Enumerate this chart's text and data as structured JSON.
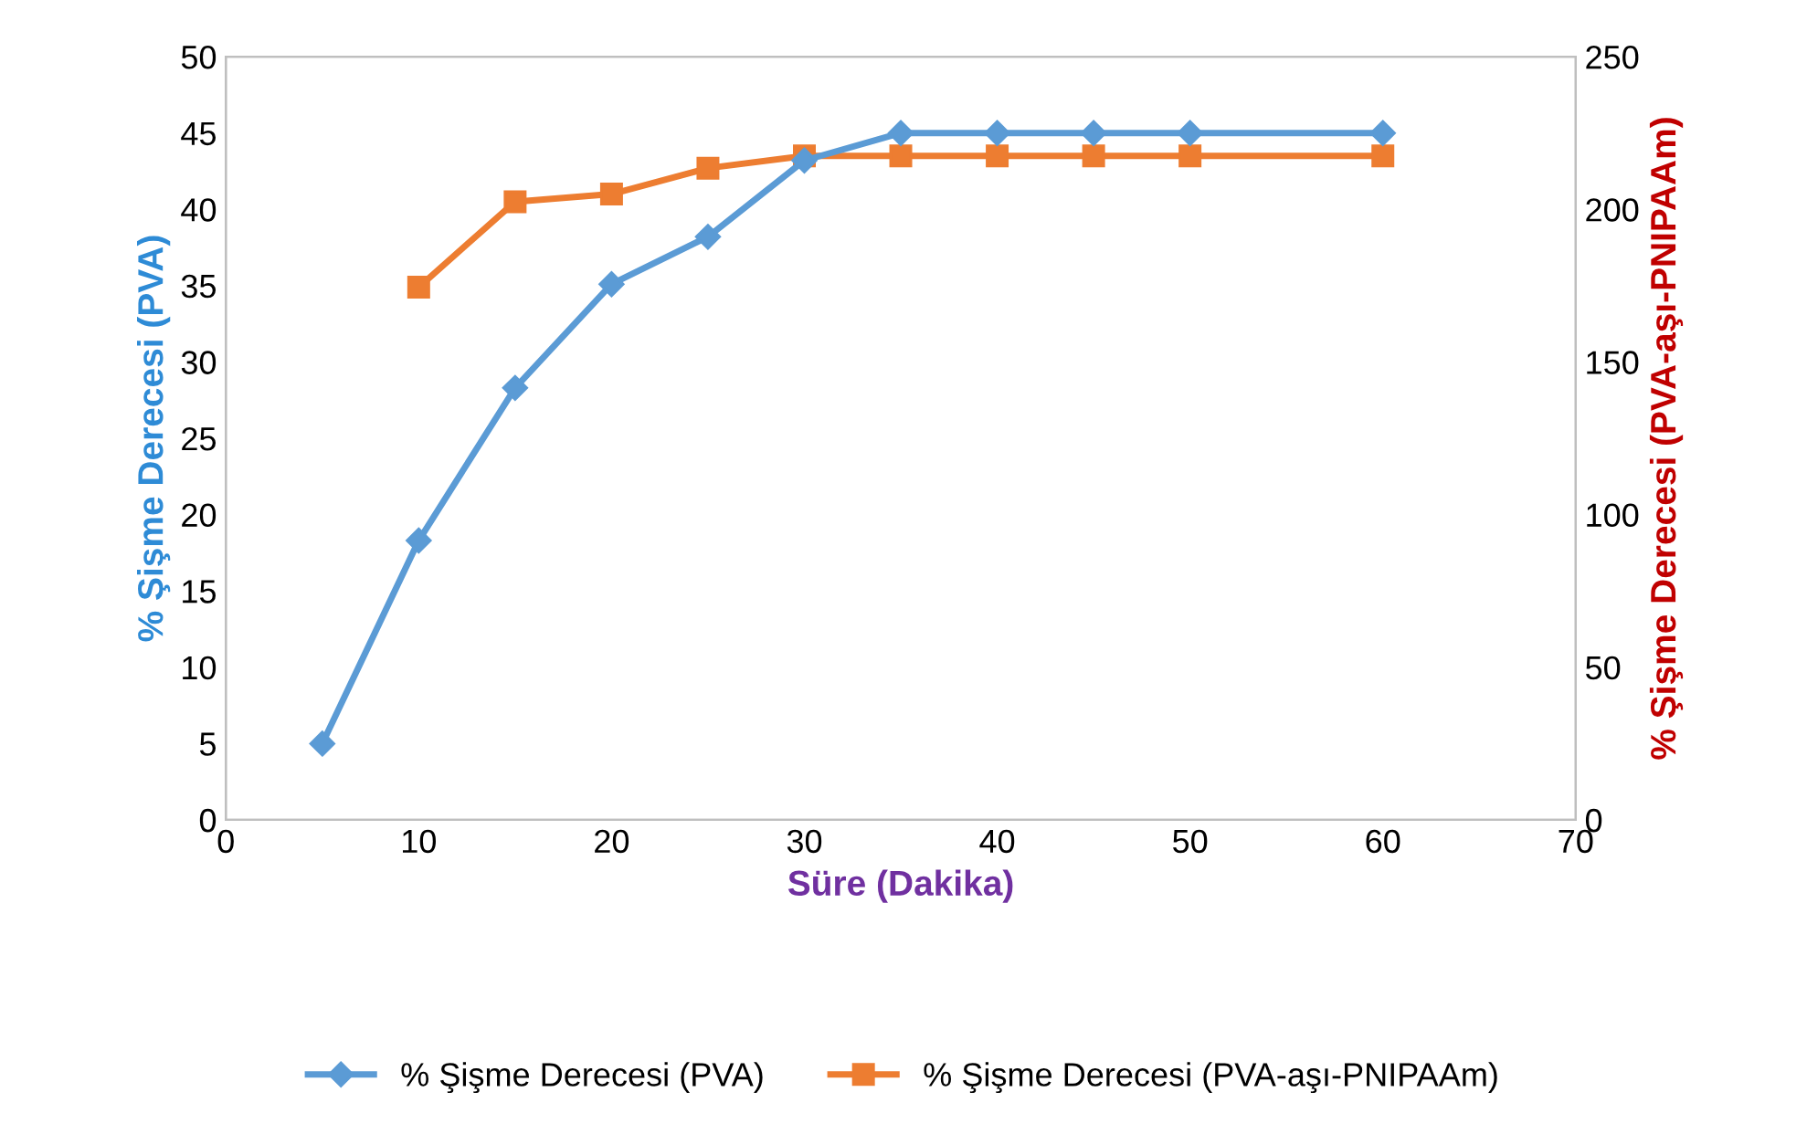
{
  "chart_data": {
    "type": "line",
    "xlabel": "Süre (Dakika)",
    "ylabel": "% Şişme Derecesi (PVA)",
    "y2label": "% Şişme Derecesi (PVA-aşı-PNIPAAm)",
    "xlim": [
      0,
      70
    ],
    "xticks": [
      0,
      10,
      20,
      30,
      40,
      50,
      60,
      70
    ],
    "ylim": [
      0,
      50
    ],
    "yticks": [
      0,
      5,
      10,
      15,
      20,
      25,
      30,
      35,
      40,
      45,
      50
    ],
    "y2lim": [
      0,
      250
    ],
    "y2ticks": [
      0,
      50,
      100,
      150,
      200,
      250
    ],
    "grid": false,
    "legend": "bottom",
    "series": [
      {
        "name": "% Şişme Derecesi (PVA)",
        "color": "#5b9bd5",
        "marker": "diamond",
        "x": [
          5,
          10,
          15,
          20,
          25,
          30,
          35,
          40,
          45,
          50,
          60
        ],
        "values": [
          5,
          18.3,
          28.3,
          35.1,
          38.2,
          43.2,
          45,
          45,
          45,
          45,
          45
        ]
      },
      {
        "name": "% Şişme Derecesi (PVA-aşı-PNIPAAm)",
        "color": "#ed7d31",
        "marker": "square",
        "axis": "y2",
        "x": [
          10,
          15,
          20,
          25,
          30,
          35,
          40,
          45,
          50,
          60
        ],
        "values": [
          174.5,
          202.5,
          205,
          213.5,
          217.5,
          217.5,
          217.5,
          217.5,
          217.5,
          217.5
        ]
      }
    ]
  }
}
